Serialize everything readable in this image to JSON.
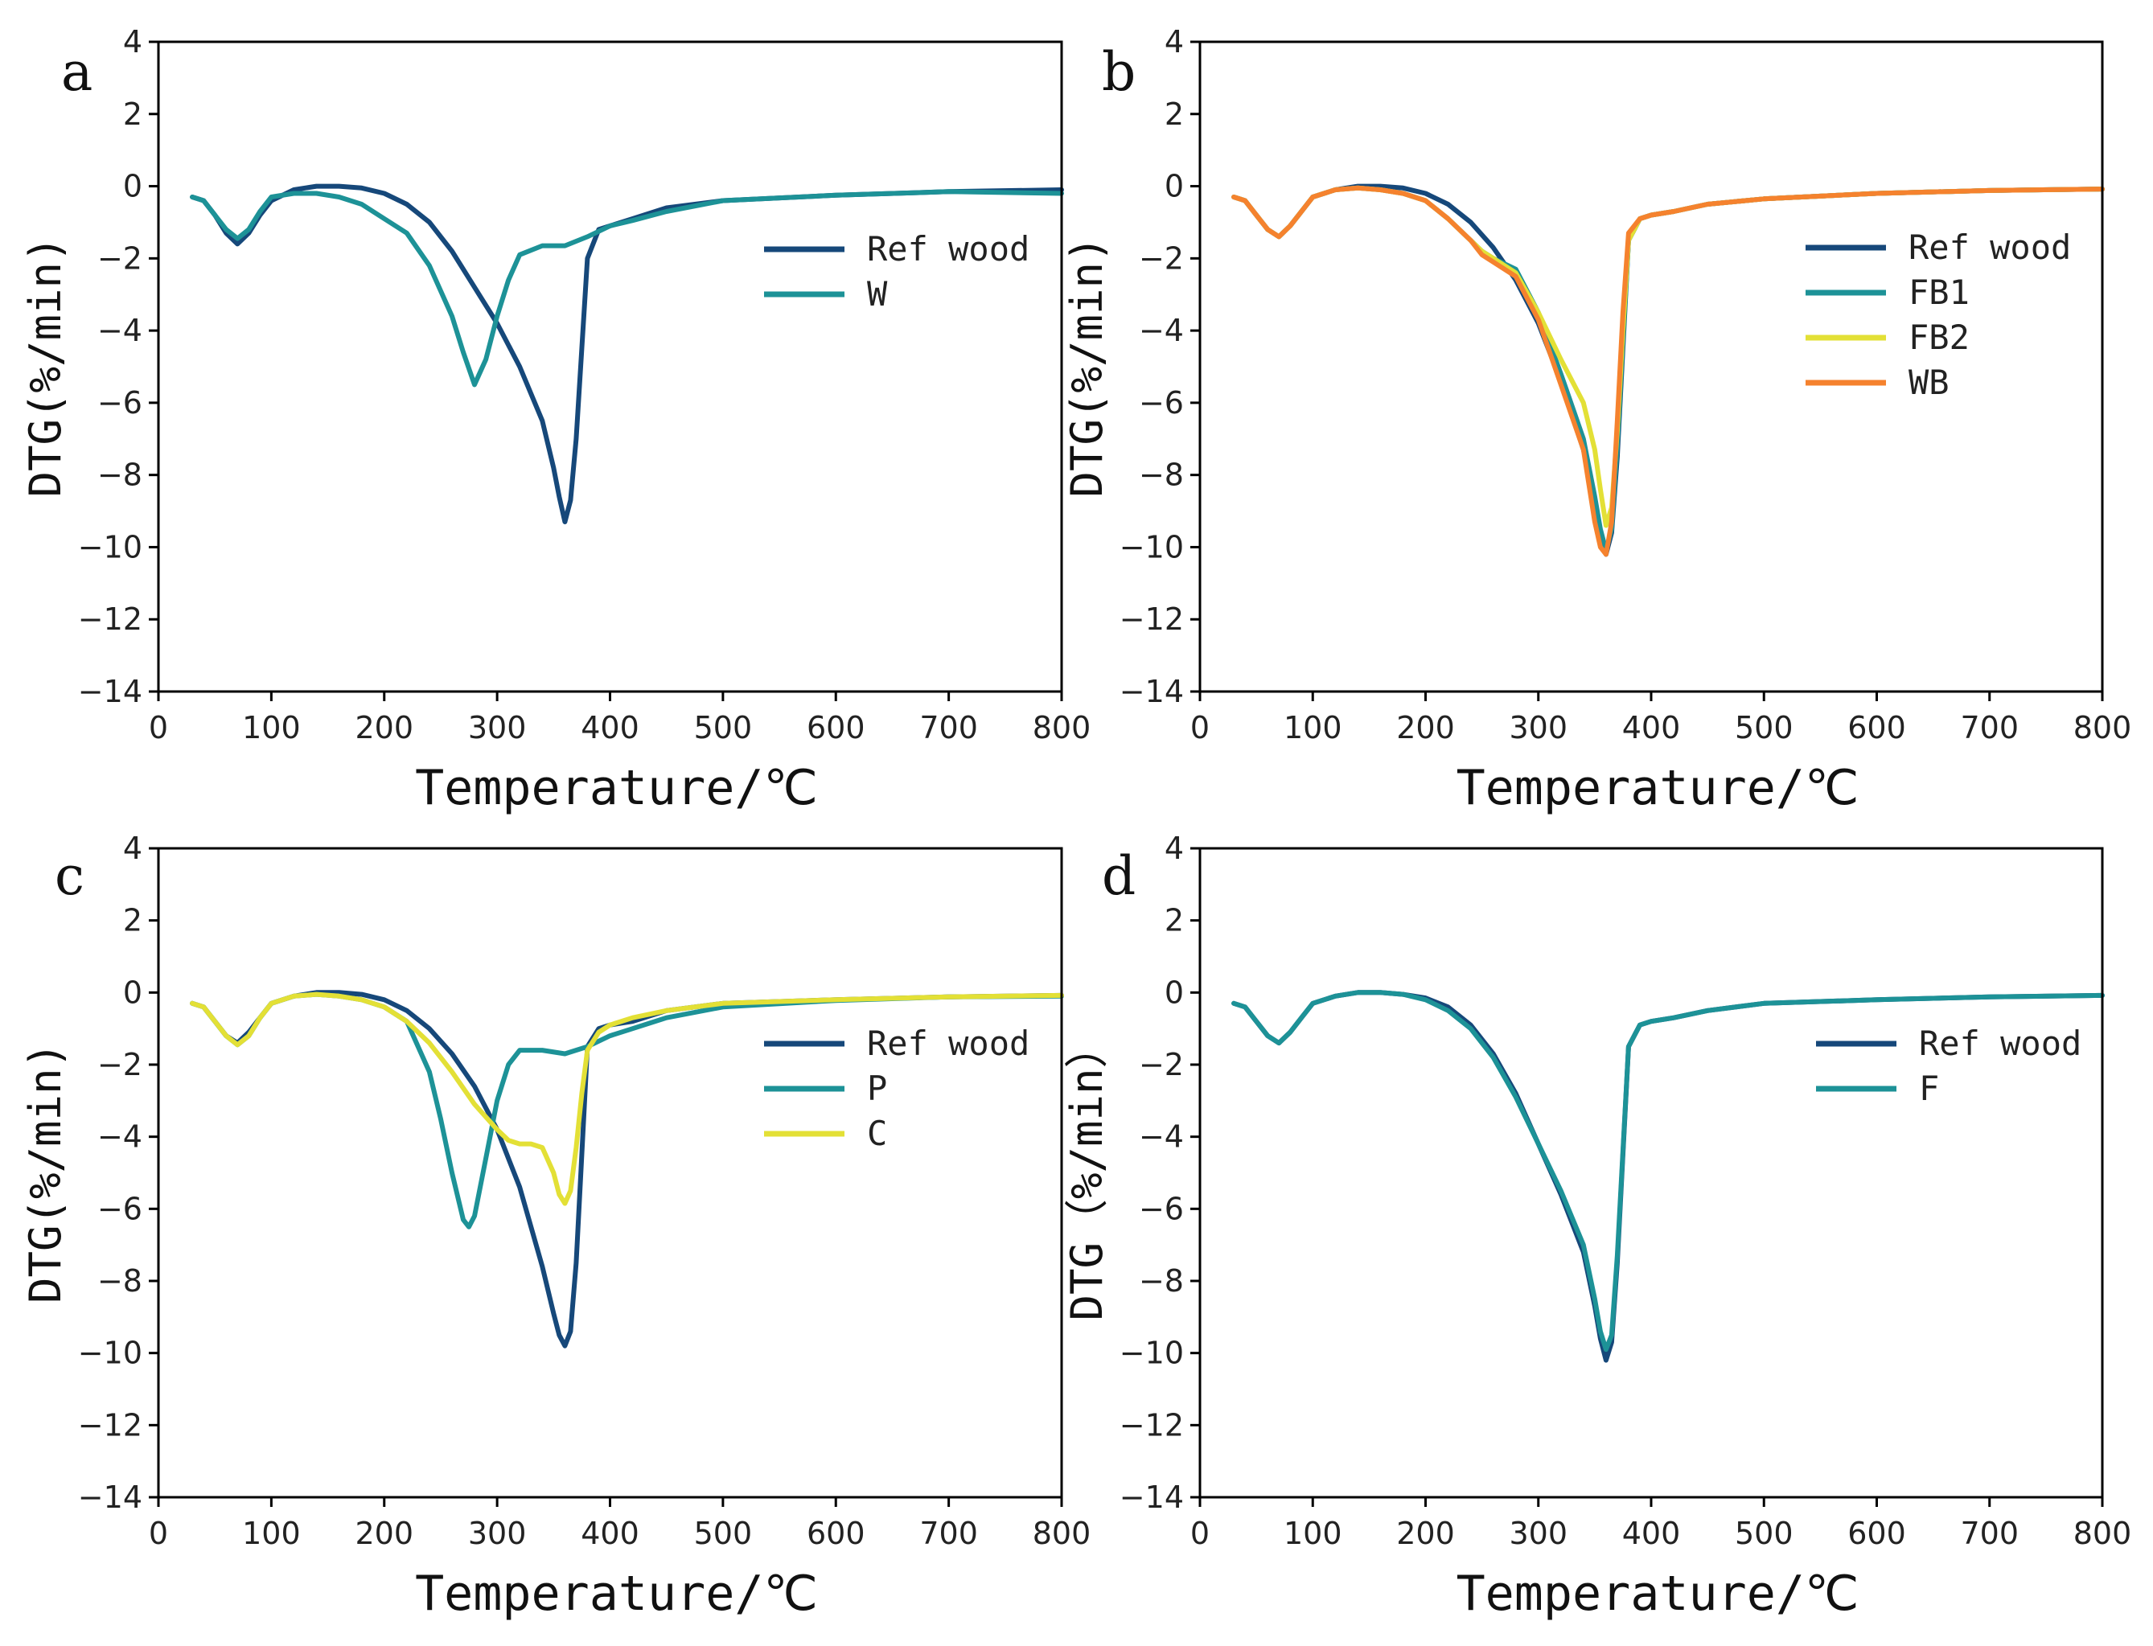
{
  "colors": {
    "navy": "#16487a",
    "teal": "#1d9297",
    "yellow": "#e3e036",
    "orange": "#f5822e"
  },
  "chart_data": [
    {
      "panel": "a",
      "type": "line",
      "xlabel": "Temperature/℃",
      "ylabel": "DTG(%/min)",
      "xlim": [
        0,
        800
      ],
      "ylim": [
        -14,
        4
      ],
      "xticks": [
        0,
        100,
        200,
        300,
        400,
        500,
        600,
        700,
        800
      ],
      "yticks": [
        -14,
        -12,
        -10,
        -8,
        -6,
        -4,
        -2,
        0,
        2,
        4
      ],
      "legend_position": "right",
      "series": [
        {
          "name": "Ref wood",
          "color": "navy",
          "x": [
            30,
            40,
            50,
            60,
            70,
            80,
            90,
            100,
            120,
            140,
            160,
            180,
            200,
            220,
            240,
            260,
            280,
            300,
            320,
            340,
            350,
            355,
            360,
            365,
            370,
            375,
            380,
            390,
            400,
            420,
            450,
            500,
            600,
            700,
            800
          ],
          "y": [
            -0.3,
            -0.4,
            -0.8,
            -1.3,
            -1.6,
            -1.3,
            -0.8,
            -0.4,
            -0.1,
            0,
            0,
            -0.05,
            -0.2,
            -0.5,
            -1.0,
            -1.8,
            -2.8,
            -3.8,
            -5.0,
            -6.5,
            -7.8,
            -8.6,
            -9.3,
            -8.7,
            -7,
            -4.5,
            -2,
            -1.2,
            -1.1,
            -0.9,
            -0.6,
            -0.4,
            -0.25,
            -0.15,
            -0.1
          ]
        },
        {
          "name": "W",
          "color": "teal",
          "x": [
            30,
            40,
            50,
            60,
            70,
            80,
            90,
            100,
            120,
            140,
            160,
            180,
            200,
            220,
            240,
            260,
            270,
            280,
            290,
            300,
            310,
            320,
            340,
            360,
            380,
            400,
            420,
            450,
            500,
            600,
            700,
            800
          ],
          "y": [
            -0.3,
            -0.4,
            -0.8,
            -1.2,
            -1.45,
            -1.2,
            -0.7,
            -0.3,
            -0.2,
            -0.2,
            -0.3,
            -0.5,
            -0.9,
            -1.3,
            -2.2,
            -3.6,
            -4.6,
            -5.5,
            -4.8,
            -3.6,
            -2.6,
            -1.9,
            -1.65,
            -1.65,
            -1.4,
            -1.1,
            -0.95,
            -0.7,
            -0.4,
            -0.25,
            -0.15,
            -0.2
          ]
        }
      ]
    },
    {
      "panel": "b",
      "type": "line",
      "xlabel": "Temperature/℃",
      "ylabel": "DTG(%/min)",
      "xlim": [
        0,
        800
      ],
      "ylim": [
        -14,
        4
      ],
      "xticks": [
        0,
        100,
        200,
        300,
        400,
        500,
        600,
        700,
        800
      ],
      "yticks": [
        -14,
        -12,
        -10,
        -8,
        -6,
        -4,
        -2,
        0,
        2,
        4
      ],
      "legend_position": "right",
      "series": [
        {
          "name": "Ref wood",
          "color": "navy",
          "x": [
            30,
            40,
            50,
            60,
            70,
            80,
            90,
            100,
            120,
            140,
            160,
            180,
            200,
            220,
            240,
            260,
            280,
            300,
            320,
            340,
            350,
            355,
            360,
            365,
            370,
            375,
            380,
            390,
            400,
            420,
            450,
            500,
            600,
            700,
            800
          ],
          "y": [
            -0.3,
            -0.4,
            -0.8,
            -1.2,
            -1.4,
            -1.1,
            -0.7,
            -0.3,
            -0.1,
            0,
            0,
            -0.05,
            -0.2,
            -0.5,
            -1.0,
            -1.7,
            -2.6,
            -3.8,
            -5.4,
            -7.3,
            -8.7,
            -9.6,
            -10.2,
            -9.6,
            -7.5,
            -4.5,
            -1.5,
            -0.9,
            -0.8,
            -0.7,
            -0.5,
            -0.35,
            -0.2,
            -0.12,
            -0.08
          ]
        },
        {
          "name": "FB1",
          "color": "teal",
          "x": [
            30,
            40,
            50,
            60,
            70,
            80,
            90,
            100,
            120,
            140,
            160,
            180,
            200,
            220,
            240,
            250,
            260,
            280,
            300,
            320,
            340,
            350,
            355,
            360,
            365,
            370,
            375,
            380,
            390,
            400,
            420,
            450,
            500,
            600,
            700,
            800
          ],
          "y": [
            -0.3,
            -0.4,
            -0.8,
            -1.2,
            -1.4,
            -1.1,
            -0.7,
            -0.3,
            -0.1,
            -0.05,
            -0.1,
            -0.2,
            -0.4,
            -0.9,
            -1.5,
            -1.8,
            -2.0,
            -2.3,
            -3.5,
            -5.2,
            -7.0,
            -8.6,
            -9.5,
            -10.1,
            -9.5,
            -7.2,
            -4.3,
            -1.5,
            -0.9,
            -0.8,
            -0.7,
            -0.5,
            -0.35,
            -0.2,
            -0.12,
            -0.08
          ]
        },
        {
          "name": "FB2",
          "color": "yellow",
          "x": [
            30,
            40,
            50,
            60,
            70,
            80,
            90,
            100,
            120,
            140,
            160,
            180,
            200,
            220,
            240,
            250,
            260,
            280,
            300,
            320,
            340,
            350,
            355,
            360,
            365,
            370,
            375,
            380,
            390,
            400,
            420,
            450,
            500,
            600,
            700,
            800
          ],
          "y": [
            -0.3,
            -0.4,
            -0.8,
            -1.2,
            -1.4,
            -1.1,
            -0.7,
            -0.3,
            -0.1,
            -0.05,
            -0.1,
            -0.2,
            -0.4,
            -0.9,
            -1.5,
            -1.8,
            -2.0,
            -2.4,
            -3.5,
            -4.8,
            -6.0,
            -7.3,
            -8.4,
            -9.4,
            -8.9,
            -6.8,
            -4.0,
            -1.5,
            -0.9,
            -0.8,
            -0.7,
            -0.5,
            -0.35,
            -0.2,
            -0.12,
            -0.08
          ]
        },
        {
          "name": "WB",
          "color": "orange",
          "x": [
            30,
            40,
            50,
            60,
            70,
            80,
            90,
            100,
            120,
            140,
            160,
            180,
            200,
            220,
            240,
            250,
            260,
            280,
            300,
            320,
            340,
            350,
            355,
            360,
            365,
            370,
            375,
            380,
            390,
            400,
            420,
            450,
            500,
            600,
            700,
            800
          ],
          "y": [
            -0.3,
            -0.4,
            -0.8,
            -1.2,
            -1.4,
            -1.1,
            -0.7,
            -0.3,
            -0.1,
            -0.05,
            -0.1,
            -0.2,
            -0.4,
            -0.9,
            -1.5,
            -1.9,
            -2.1,
            -2.5,
            -3.7,
            -5.5,
            -7.3,
            -9.3,
            -10.0,
            -10.2,
            -9.3,
            -6.5,
            -3.5,
            -1.3,
            -0.9,
            -0.8,
            -0.7,
            -0.5,
            -0.35,
            -0.2,
            -0.12,
            -0.08
          ]
        }
      ]
    },
    {
      "panel": "c",
      "type": "line",
      "xlabel": "Temperature/℃",
      "ylabel": "DTG(%/min)",
      "xlim": [
        0,
        800
      ],
      "ylim": [
        -14,
        4
      ],
      "xticks": [
        0,
        100,
        200,
        300,
        400,
        500,
        600,
        700,
        800
      ],
      "yticks": [
        -14,
        -12,
        -10,
        -8,
        -6,
        -4,
        -2,
        0,
        2,
        4
      ],
      "legend_position": "right",
      "series": [
        {
          "name": "Ref wood",
          "color": "navy",
          "x": [
            30,
            40,
            50,
            60,
            70,
            80,
            90,
            100,
            120,
            140,
            160,
            180,
            200,
            220,
            240,
            260,
            280,
            300,
            320,
            340,
            350,
            355,
            360,
            365,
            370,
            375,
            380,
            390,
            400,
            420,
            450,
            500,
            600,
            700,
            800
          ],
          "y": [
            -0.3,
            -0.4,
            -0.8,
            -1.2,
            -1.4,
            -1.1,
            -0.7,
            -0.3,
            -0.1,
            0,
            0,
            -0.05,
            -0.2,
            -0.5,
            -1.0,
            -1.7,
            -2.6,
            -3.8,
            -5.4,
            -7.6,
            -8.9,
            -9.5,
            -9.8,
            -9.4,
            -7.5,
            -4.5,
            -1.5,
            -1.0,
            -0.9,
            -0.8,
            -0.5,
            -0.3,
            -0.2,
            -0.12,
            -0.08
          ]
        },
        {
          "name": "P",
          "color": "teal",
          "x": [
            30,
            40,
            50,
            60,
            70,
            80,
            90,
            100,
            120,
            140,
            160,
            180,
            200,
            220,
            240,
            250,
            260,
            270,
            275,
            280,
            290,
            300,
            310,
            320,
            340,
            360,
            380,
            400,
            420,
            450,
            500,
            600,
            700,
            800
          ],
          "y": [
            -0.3,
            -0.4,
            -0.8,
            -1.2,
            -1.45,
            -1.2,
            -0.7,
            -0.3,
            -0.1,
            -0.05,
            -0.1,
            -0.2,
            -0.4,
            -0.8,
            -2.2,
            -3.5,
            -5.0,
            -6.3,
            -6.5,
            -6.2,
            -4.6,
            -3.0,
            -2.0,
            -1.6,
            -1.6,
            -1.7,
            -1.5,
            -1.2,
            -1.0,
            -0.7,
            -0.4,
            -0.22,
            -0.12,
            -0.1
          ]
        },
        {
          "name": "C",
          "color": "yellow",
          "x": [
            30,
            40,
            50,
            60,
            70,
            80,
            90,
            100,
            120,
            140,
            160,
            180,
            200,
            220,
            240,
            260,
            280,
            300,
            310,
            320,
            330,
            340,
            350,
            355,
            360,
            365,
            370,
            375,
            380,
            390,
            400,
            420,
            450,
            500,
            600,
            700,
            800
          ],
          "y": [
            -0.3,
            -0.4,
            -0.8,
            -1.2,
            -1.45,
            -1.2,
            -0.7,
            -0.3,
            -0.1,
            -0.05,
            -0.1,
            -0.2,
            -0.4,
            -0.8,
            -1.4,
            -2.2,
            -3.1,
            -3.8,
            -4.1,
            -4.2,
            -4.2,
            -4.3,
            -5.0,
            -5.6,
            -5.85,
            -5.5,
            -4.3,
            -2.8,
            -1.6,
            -1.1,
            -0.9,
            -0.7,
            -0.5,
            -0.3,
            -0.2,
            -0.12,
            -0.08
          ]
        }
      ]
    },
    {
      "panel": "d",
      "type": "line",
      "xlabel": "Temperature/℃",
      "ylabel": "DTG（%/min）",
      "xlim": [
        0,
        800
      ],
      "ylim": [
        -14,
        4
      ],
      "xticks": [
        0,
        100,
        200,
        300,
        400,
        500,
        600,
        700,
        800
      ],
      "yticks": [
        -14,
        -12,
        -10,
        -8,
        -6,
        -4,
        -2,
        0,
        2,
        4
      ],
      "legend_position": "right",
      "series": [
        {
          "name": "Ref wood",
          "color": "navy",
          "x": [
            30,
            40,
            50,
            60,
            70,
            80,
            90,
            100,
            120,
            140,
            160,
            180,
            200,
            220,
            240,
            260,
            280,
            300,
            320,
            340,
            350,
            355,
            360,
            365,
            370,
            375,
            380,
            390,
            400,
            420,
            450,
            500,
            600,
            700,
            800
          ],
          "y": [
            -0.3,
            -0.4,
            -0.8,
            -1.2,
            -1.4,
            -1.1,
            -0.7,
            -0.3,
            -0.1,
            0,
            0,
            -0.05,
            -0.15,
            -0.4,
            -0.9,
            -1.7,
            -2.8,
            -4.2,
            -5.6,
            -7.2,
            -8.7,
            -9.6,
            -10.2,
            -9.7,
            -7.5,
            -4.5,
            -1.5,
            -0.9,
            -0.8,
            -0.7,
            -0.5,
            -0.3,
            -0.2,
            -0.12,
            -0.08
          ]
        },
        {
          "name": "F",
          "color": "teal",
          "x": [
            30,
            40,
            50,
            60,
            70,
            80,
            90,
            100,
            120,
            140,
            160,
            180,
            200,
            220,
            240,
            260,
            280,
            300,
            320,
            340,
            350,
            355,
            360,
            365,
            370,
            375,
            380,
            390,
            400,
            420,
            450,
            500,
            600,
            700,
            800
          ],
          "y": [
            -0.3,
            -0.4,
            -0.8,
            -1.2,
            -1.4,
            -1.1,
            -0.7,
            -0.3,
            -0.1,
            0,
            0,
            -0.05,
            -0.2,
            -0.5,
            -1.0,
            -1.8,
            -2.9,
            -4.2,
            -5.5,
            -7.0,
            -8.5,
            -9.4,
            -9.9,
            -9.5,
            -7.3,
            -4.4,
            -1.5,
            -0.9,
            -0.8,
            -0.7,
            -0.5,
            -0.3,
            -0.2,
            -0.12,
            -0.08
          ]
        }
      ]
    }
  ]
}
